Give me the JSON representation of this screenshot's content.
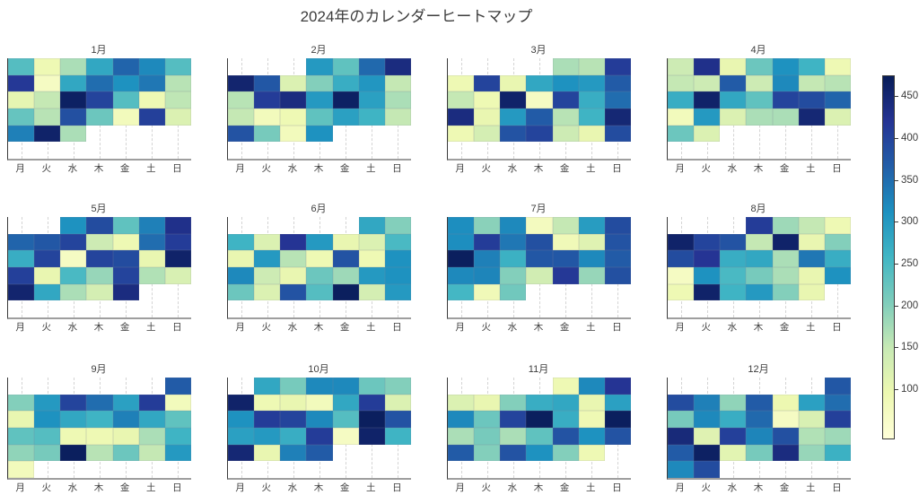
{
  "title": "2024年のカレンダーヒートマップ",
  "chart_data": {
    "type": "heatmap",
    "title": "2024年のカレンダーヒートマップ",
    "subtitle": "",
    "weekday_labels": [
      "月",
      "火",
      "水",
      "木",
      "金",
      "土",
      "日"
    ],
    "legend_position": "right-colorbar",
    "grid": "vertical-dashed",
    "colormap": {
      "name": "YlGnBu",
      "vmin": 40,
      "vmax": 475,
      "stops": [
        [
          0.0,
          "#ffffd9"
        ],
        [
          0.125,
          "#edf8b1"
        ],
        [
          0.25,
          "#c7e9b4"
        ],
        [
          0.375,
          "#7fcdbb"
        ],
        [
          0.5,
          "#41b6c4"
        ],
        [
          0.625,
          "#1d91c0"
        ],
        [
          0.75,
          "#225ea8"
        ],
        [
          0.875,
          "#253494"
        ],
        [
          1.0,
          "#081d58"
        ]
      ]
    },
    "colorbar": {
      "ticks": [
        100,
        150,
        200,
        250,
        300,
        350,
        400,
        450
      ]
    },
    "months": [
      {
        "label": "1月",
        "weeks": [
          [
            240,
            90,
            170,
            280,
            360,
            320,
            240
          ],
          [
            415,
            70,
            280,
            350,
            310,
            340,
            160
          ],
          [
            105,
            150,
            465,
            400,
            240,
            90,
            155
          ],
          [
            225,
            160,
            385,
            220,
            80,
            405,
            120
          ],
          [
            330,
            460,
            170,
            null,
            null,
            null,
            null
          ],
          [
            null,
            null,
            null,
            null,
            null,
            null,
            null
          ]
        ]
      },
      {
        "label": "2月",
        "weeks": [
          [
            null,
            null,
            null,
            300,
            230,
            355,
            440
          ],
          [
            455,
            375,
            120,
            200,
            270,
            305,
            150
          ],
          [
            160,
            410,
            440,
            300,
            465,
            290,
            170
          ],
          [
            150,
            80,
            90,
            230,
            290,
            260,
            150
          ],
          [
            380,
            210,
            80,
            310,
            null,
            null,
            null
          ],
          [
            null,
            null,
            null,
            null,
            null,
            null,
            null
          ]
        ]
      },
      {
        "label": "3月",
        "weeks": [
          [
            null,
            null,
            null,
            null,
            170,
            160,
            410
          ],
          [
            90,
            400,
            100,
            280,
            310,
            300,
            370
          ],
          [
            150,
            90,
            460,
            70,
            400,
            270,
            350
          ],
          [
            440,
            100,
            300,
            370,
            160,
            260,
            450
          ],
          [
            90,
            130,
            380,
            400,
            140,
            100,
            390
          ],
          [
            null,
            null,
            null,
            null,
            null,
            null,
            null
          ]
        ]
      },
      {
        "label": "4月",
        "weeks": [
          [
            140,
            430,
            100,
            220,
            310,
            260,
            90
          ],
          [
            150,
            140,
            370,
            140,
            320,
            150,
            160
          ],
          [
            270,
            460,
            280,
            230,
            400,
            390,
            360
          ],
          [
            80,
            300,
            120,
            170,
            170,
            450,
            120
          ],
          [
            220,
            120,
            null,
            null,
            null,
            null,
            null
          ],
          [
            null,
            null,
            null,
            null,
            null,
            null,
            null
          ]
        ]
      },
      {
        "label": "5月",
        "weeks": [
          [
            null,
            null,
            310,
            390,
            230,
            330,
            430
          ],
          [
            360,
            375,
            400,
            140,
            90,
            350,
            410
          ],
          [
            270,
            400,
            70,
            400,
            390,
            100,
            460
          ],
          [
            405,
            100,
            250,
            185,
            400,
            165,
            125
          ],
          [
            455,
            280,
            170,
            130,
            440,
            null,
            null
          ],
          [
            null,
            null,
            null,
            null,
            null,
            null,
            null
          ]
        ]
      },
      {
        "label": "6月",
        "weeks": [
          [
            null,
            null,
            null,
            null,
            null,
            280,
            200
          ],
          [
            260,
            120,
            420,
            300,
            100,
            120,
            250
          ],
          [
            100,
            300,
            160,
            90,
            380,
            90,
            310
          ],
          [
            320,
            140,
            100,
            220,
            180,
            300,
            310
          ],
          [
            220,
            120,
            380,
            240,
            470,
            130,
            300
          ],
          [
            null,
            null,
            null,
            null,
            null,
            null,
            null
          ]
        ]
      },
      {
        "label": "7月",
        "weeks": [
          [
            315,
            195,
            320,
            75,
            150,
            295,
            390
          ],
          [
            315,
            410,
            340,
            385,
            85,
            115,
            380
          ],
          [
            470,
            330,
            265,
            375,
            375,
            320,
            370
          ],
          [
            320,
            325,
            200,
            135,
            415,
            185,
            385
          ],
          [
            255,
            85,
            215,
            null,
            null,
            null,
            null
          ],
          [
            null,
            null,
            null,
            null,
            null,
            null,
            null
          ]
        ]
      },
      {
        "label": "8月",
        "weeks": [
          [
            null,
            null,
            null,
            410,
            180,
            150,
            90
          ],
          [
            460,
            400,
            380,
            150,
            460,
            100,
            200
          ],
          [
            390,
            420,
            270,
            280,
            170,
            340,
            270
          ],
          [
            70,
            310,
            250,
            210,
            170,
            100,
            310
          ],
          [
            90,
            460,
            260,
            300,
            200,
            100,
            null
          ],
          [
            null,
            null,
            null,
            null,
            null,
            null,
            null
          ]
        ]
      },
      {
        "label": "9月",
        "weeks": [
          [
            null,
            null,
            null,
            null,
            null,
            null,
            370
          ],
          [
            200,
            300,
            400,
            350,
            290,
            410,
            80
          ],
          [
            100,
            310,
            280,
            260,
            330,
            280,
            230
          ],
          [
            230,
            240,
            90,
            90,
            100,
            170,
            260
          ],
          [
            190,
            210,
            470,
            160,
            220,
            150,
            300
          ],
          [
            80,
            null,
            null,
            null,
            null,
            null,
            null
          ]
        ]
      },
      {
        "label": "10月",
        "weeks": [
          [
            null,
            280,
            210,
            320,
            320,
            220,
            200
          ],
          [
            460,
            90,
            100,
            80,
            280,
            410,
            120
          ],
          [
            310,
            410,
            400,
            320,
            240,
            470,
            380
          ],
          [
            290,
            300,
            270,
            410,
            70,
            460,
            260
          ],
          [
            450,
            100,
            330,
            370,
            null,
            null,
            null
          ],
          [
            null,
            null,
            null,
            null,
            null,
            null,
            null
          ]
        ]
      },
      {
        "label": "11月",
        "weeks": [
          [
            null,
            null,
            null,
            null,
            90,
            320,
            420
          ],
          [
            120,
            100,
            200,
            270,
            280,
            100,
            290
          ],
          [
            320,
            220,
            400,
            470,
            270,
            90,
            470
          ],
          [
            170,
            210,
            170,
            230,
            380,
            310,
            380
          ],
          [
            370,
            200,
            380,
            310,
            200,
            90,
            null
          ],
          [
            null,
            null,
            null,
            null,
            null,
            null,
            null
          ]
        ]
      },
      {
        "label": "12月",
        "weeks": [
          [
            null,
            null,
            null,
            null,
            null,
            null,
            375
          ],
          [
            390,
            330,
            190,
            370,
            95,
            290,
            350
          ],
          [
            210,
            320,
            270,
            355,
            70,
            125,
            405
          ],
          [
            445,
            115,
            405,
            325,
            385,
            165,
            180
          ],
          [
            370,
            465,
            110,
            210,
            440,
            185,
            265
          ],
          [
            320,
            390,
            null,
            null,
            null,
            null,
            null
          ]
        ]
      }
    ]
  }
}
